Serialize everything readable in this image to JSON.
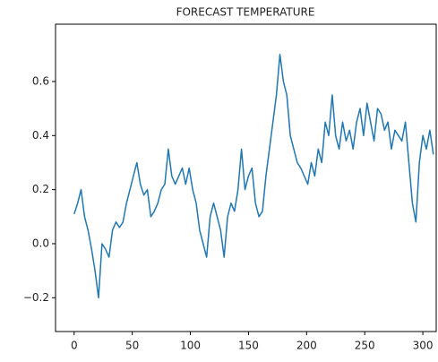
{
  "chart_data": {
    "type": "line",
    "title": "FORECAST TEMPERATURE",
    "x": [
      0,
      3,
      6,
      9,
      12,
      15,
      18,
      21,
      24,
      27,
      30,
      33,
      36,
      39,
      42,
      45,
      48,
      51,
      54,
      57,
      60,
      63,
      66,
      69,
      72,
      75,
      78,
      81,
      84,
      87,
      90,
      93,
      96,
      99,
      102,
      105,
      108,
      111,
      114,
      117,
      120,
      123,
      126,
      129,
      132,
      135,
      138,
      141,
      144,
      147,
      150,
      153,
      156,
      159,
      162,
      165,
      168,
      171,
      174,
      177,
      180,
      183,
      186,
      189,
      192,
      195,
      198,
      201,
      204,
      207,
      210,
      213,
      216,
      219,
      222,
      225,
      228,
      231,
      234,
      237,
      240,
      243,
      246,
      249,
      252,
      255,
      258,
      261,
      264,
      267,
      270,
      273,
      276,
      279,
      282,
      285,
      288,
      291,
      294,
      297,
      300,
      303,
      306,
      309
    ],
    "series": [
      {
        "color": "#1f77b4",
        "values": [
          0.11,
          0.15,
          0.2,
          0.1,
          0.05,
          -0.02,
          -0.1,
          -0.2,
          0.0,
          -0.02,
          -0.05,
          0.05,
          0.08,
          0.06,
          0.08,
          0.15,
          0.2,
          0.25,
          0.3,
          0.22,
          0.18,
          0.2,
          0.1,
          0.12,
          0.15,
          0.2,
          0.22,
          0.35,
          0.25,
          0.22,
          0.25,
          0.28,
          0.22,
          0.28,
          0.2,
          0.15,
          0.05,
          0.0,
          -0.05,
          0.1,
          0.15,
          0.1,
          0.05,
          -0.05,
          0.1,
          0.15,
          0.12,
          0.2,
          0.35,
          0.2,
          0.25,
          0.28,
          0.15,
          0.1,
          0.12,
          0.25,
          0.35,
          0.45,
          0.55,
          0.7,
          0.6,
          0.55,
          0.4,
          0.35,
          0.3,
          0.28,
          0.25,
          0.22,
          0.3,
          0.25,
          0.35,
          0.3,
          0.45,
          0.4,
          0.55,
          0.4,
          0.35,
          0.45,
          0.38,
          0.42,
          0.35,
          0.45,
          0.5,
          0.4,
          0.52,
          0.45,
          0.38,
          0.5,
          0.48,
          0.42,
          0.45,
          0.35,
          0.42,
          0.4,
          0.38,
          0.45,
          0.3,
          0.15,
          0.08,
          0.3,
          0.4,
          0.35,
          0.42,
          0.33
        ]
      }
    ],
    "xlim": [
      -16,
      311.5
    ],
    "ylim": [
      -0.325,
      0.812
    ],
    "xticks": [
      0,
      50,
      100,
      150,
      200,
      250,
      300
    ],
    "yticks": [
      {
        "value": -0.2,
        "label": "−0.2"
      },
      {
        "value": 0,
        "label": "0.0"
      },
      0.2,
      0.4,
      0.6
    ]
  }
}
